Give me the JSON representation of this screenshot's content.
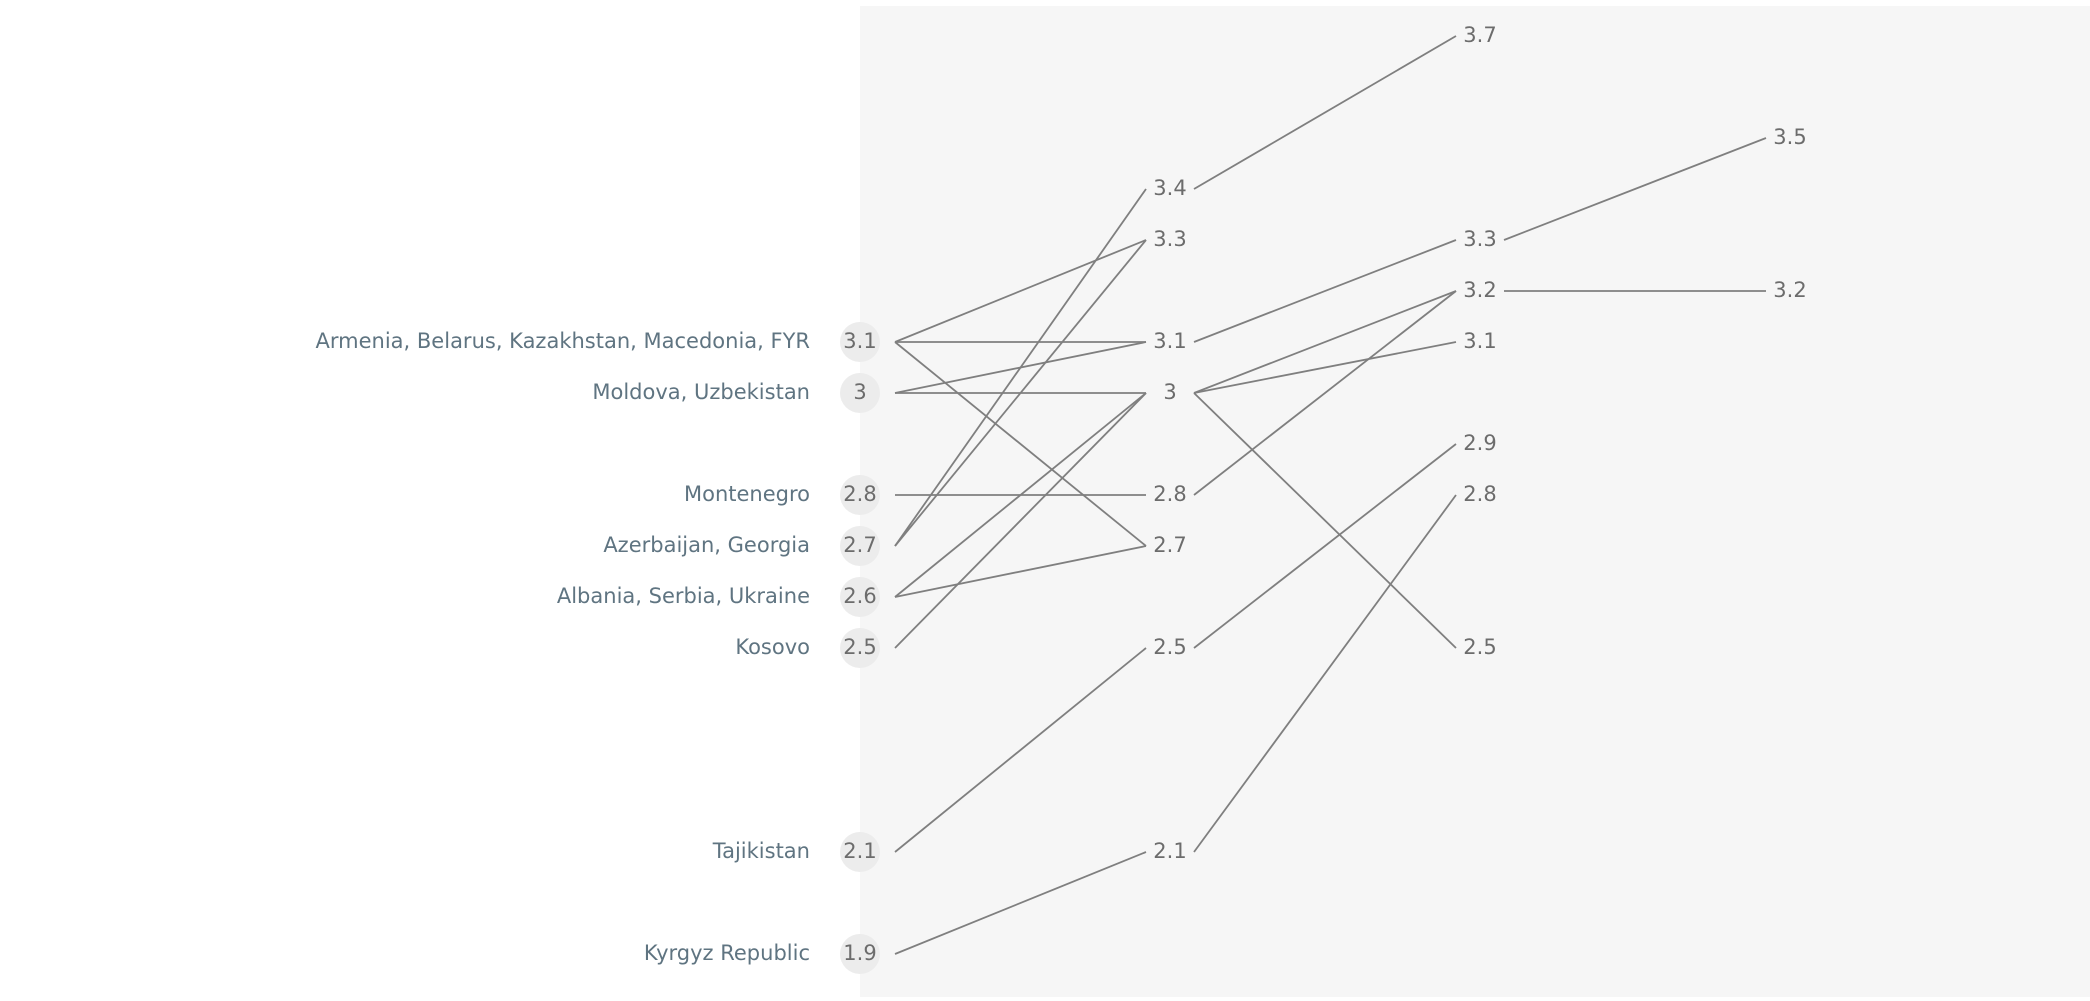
{
  "chart_data": {
    "type": "line",
    "title": "",
    "xlabel": "",
    "ylabel": "",
    "ylim": [
      1.9,
      3.7
    ],
    "grid": false,
    "legend": "none",
    "columns": 4,
    "row_labels": [
      {
        "label": "Armenia, Belarus, Kazakhstan, Macedonia, FYR",
        "value": 3.1
      },
      {
        "label": "Moldova, Uzbekistan",
        "value": 3
      },
      {
        "label": "Montenegro",
        "value": 2.8
      },
      {
        "label": "Azerbaijan, Georgia",
        "value": 2.7
      },
      {
        "label": "Albania, Serbia, Ukraine",
        "value": 2.6
      },
      {
        "label": "Kosovo",
        "value": 2.5
      },
      {
        "label": "Tajikistan",
        "value": 2.1
      },
      {
        "label": "Kyrgyz Republic",
        "value": 1.9
      }
    ],
    "column_values": [
      [
        3.1,
        3,
        2.8,
        2.7,
        2.6,
        2.5,
        2.1,
        1.9
      ],
      [
        3.4,
        3.3,
        3.1,
        3,
        2.8,
        2.7,
        2.5,
        2.1
      ],
      [
        3.7,
        3.3,
        3.2,
        3.1,
        2.9,
        2.8,
        2.5
      ],
      [
        3.5,
        3.2
      ]
    ],
    "connections": [
      {
        "from": [
          0,
          3.1
        ],
        "to": [
          1,
          3.3
        ]
      },
      {
        "from": [
          0,
          3.1
        ],
        "to": [
          1,
          3.1
        ]
      },
      {
        "from": [
          0,
          3.1
        ],
        "to": [
          1,
          2.7
        ]
      },
      {
        "from": [
          0,
          3
        ],
        "to": [
          1,
          3.1
        ]
      },
      {
        "from": [
          0,
          3
        ],
        "to": [
          1,
          3
        ]
      },
      {
        "from": [
          0,
          2.8
        ],
        "to": [
          1,
          2.8
        ]
      },
      {
        "from": [
          0,
          2.7
        ],
        "to": [
          1,
          3.4
        ]
      },
      {
        "from": [
          0,
          2.7
        ],
        "to": [
          1,
          3.3
        ]
      },
      {
        "from": [
          0,
          2.6
        ],
        "to": [
          1,
          3
        ]
      },
      {
        "from": [
          0,
          2.6
        ],
        "to": [
          1,
          2.7
        ]
      },
      {
        "from": [
          0,
          2.5
        ],
        "to": [
          1,
          3
        ]
      },
      {
        "from": [
          0,
          2.1
        ],
        "to": [
          1,
          2.5
        ]
      },
      {
        "from": [
          0,
          1.9
        ],
        "to": [
          1,
          2.1
        ]
      },
      {
        "from": [
          1,
          3.4
        ],
        "to": [
          2,
          3.7
        ]
      },
      {
        "from": [
          1,
          3.1
        ],
        "to": [
          2,
          3.3
        ]
      },
      {
        "from": [
          1,
          3
        ],
        "to": [
          2,
          3.2
        ]
      },
      {
        "from": [
          1,
          3
        ],
        "to": [
          2,
          3.1
        ]
      },
      {
        "from": [
          1,
          3
        ],
        "to": [
          2,
          2.5
        ]
      },
      {
        "from": [
          1,
          2.8
        ],
        "to": [
          2,
          3.2
        ]
      },
      {
        "from": [
          1,
          2.5
        ],
        "to": [
          2,
          2.9
        ]
      },
      {
        "from": [
          1,
          2.1
        ],
        "to": [
          2,
          2.8
        ]
      },
      {
        "from": [
          2,
          3.3
        ],
        "to": [
          3,
          3.5
        ]
      },
      {
        "from": [
          2,
          3.2
        ],
        "to": [
          3,
          3.2
        ]
      }
    ]
  },
  "colors": {
    "panel": "#f6f6f6",
    "line": "#7f7f7f",
    "value_text": "#6c6c6c",
    "label_text": "#5f7481",
    "halo": "#ececec"
  }
}
